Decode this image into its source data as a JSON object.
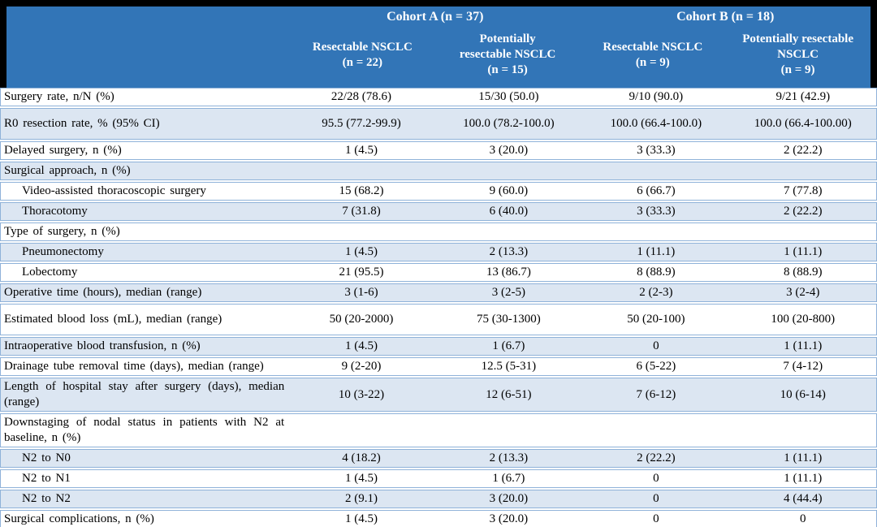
{
  "meta": {
    "description": "Surgical outcomes table for NSCLC cohorts",
    "colors": {
      "header_bg": "#3275B7",
      "band_bg": "#DCE6F2",
      "grid_line": "#8FB2D9",
      "frame": "#000000",
      "header_text": "#FFFFFF",
      "body_text": "#000000"
    }
  },
  "header": {
    "groups": [
      {
        "title": "Cohort A (n = 37)",
        "columns": [
          "Resectable NSCLC\n(n = 22)",
          "Potentially\nresectable NSCLC\n(n = 15)"
        ]
      },
      {
        "title": "Cohort B (n = 18)",
        "columns": [
          "Resectable NSCLC\n(n = 9)",
          "Potentially resectable\nNSCLC\n(n = 9)"
        ]
      }
    ]
  },
  "rows": [
    {
      "label": "Surgery rate, n/N (%)",
      "indent": false,
      "section": false,
      "tall": false,
      "values": [
        "22/28 (78.6)",
        "15/30 (50.0)",
        "9/10 (90.0)",
        "9/21 (42.9)"
      ]
    },
    {
      "label": "R0 resection rate, % (95% CI)",
      "indent": false,
      "section": false,
      "tall": true,
      "values": [
        "95.5 (77.2-99.9)",
        "100.0 (78.2-100.0)",
        "100.0 (66.4-100.0)",
        "100.0 (66.4-100.00)"
      ]
    },
    {
      "label": "Delayed surgery, n (%)",
      "indent": false,
      "section": false,
      "tall": false,
      "values": [
        "1 (4.5)",
        "3 (20.0)",
        "3 (33.3)",
        "2 (22.2)"
      ]
    },
    {
      "label": "Surgical approach, n (%)",
      "indent": false,
      "section": true,
      "tall": false,
      "values": [
        "",
        "",
        "",
        ""
      ]
    },
    {
      "label": "Video-assisted thoracoscopic surgery",
      "indent": true,
      "section": false,
      "tall": false,
      "values": [
        "15 (68.2)",
        "9 (60.0)",
        "6 (66.7)",
        "7 (77.8)"
      ]
    },
    {
      "label": "Thoracotomy",
      "indent": true,
      "section": false,
      "tall": false,
      "values": [
        "7 (31.8)",
        "6 (40.0)",
        "3 (33.3)",
        "2 (22.2)"
      ]
    },
    {
      "label": "Type of surgery, n (%)",
      "indent": false,
      "section": true,
      "tall": false,
      "values": [
        "",
        "",
        "",
        ""
      ]
    },
    {
      "label": "Pneumonectomy",
      "indent": true,
      "section": false,
      "tall": false,
      "values": [
        "1 (4.5)",
        "2 (13.3)",
        "1 (11.1)",
        "1 (11.1)"
      ]
    },
    {
      "label": "Lobectomy",
      "indent": true,
      "section": false,
      "tall": false,
      "values": [
        "21 (95.5)",
        "13 (86.7)",
        "8 (88.9)",
        "8 (88.9)"
      ]
    },
    {
      "label": "Operative time (hours), median (range)",
      "indent": false,
      "section": false,
      "tall": false,
      "values": [
        "3 (1-6)",
        "3 (2-5)",
        "2 (2-3)",
        "3 (2-4)"
      ]
    },
    {
      "label": "Estimated blood loss (mL), median (range)",
      "indent": false,
      "section": false,
      "tall": true,
      "values": [
        "50 (20-2000)",
        "75 (30-1300)",
        "50 (20-100)",
        "100 (20-800)"
      ]
    },
    {
      "label": "Intraoperative blood transfusion, n (%)",
      "indent": false,
      "section": false,
      "tall": false,
      "values": [
        "1 (4.5)",
        "1 (6.7)",
        "0",
        "1 (11.1)"
      ]
    },
    {
      "label": "Drainage tube removal time (days), median (range)",
      "indent": false,
      "section": false,
      "tall": false,
      "values": [
        "9 (2-20)",
        "12.5 (5-31)",
        "6 (5-22)",
        "7 (4-12)"
      ]
    },
    {
      "label": "Length of hospital stay after surgery (days), median (range)",
      "indent": false,
      "section": false,
      "tall": false,
      "values": [
        "10 (3-22)",
        "12 (6-51)",
        "7 (6-12)",
        "10 (6-14)"
      ]
    },
    {
      "label": "Downstaging of nodal status in patients with N2 at baseline, n (%)",
      "indent": false,
      "section": true,
      "tall": false,
      "values": [
        "",
        "",
        "",
        ""
      ]
    },
    {
      "label": "N2 to N0",
      "indent": true,
      "section": false,
      "tall": false,
      "values": [
        "4 (18.2)",
        "2 (13.3)",
        "2 (22.2)",
        "1 (11.1)"
      ]
    },
    {
      "label": "N2 to N1",
      "indent": true,
      "section": false,
      "tall": false,
      "values": [
        "1 (4.5)",
        "1 (6.7)",
        "0",
        "1 (11.1)"
      ]
    },
    {
      "label": "N2 to N2",
      "indent": true,
      "section": false,
      "tall": false,
      "values": [
        "2 (9.1)",
        "3 (20.0)",
        "0",
        "4 (44.4)"
      ]
    },
    {
      "label": "Surgical complications, n (%)",
      "indent": false,
      "section": false,
      "tall": false,
      "values": [
        "1 (4.5)",
        "3 (20.0)",
        "0",
        "0"
      ]
    }
  ]
}
